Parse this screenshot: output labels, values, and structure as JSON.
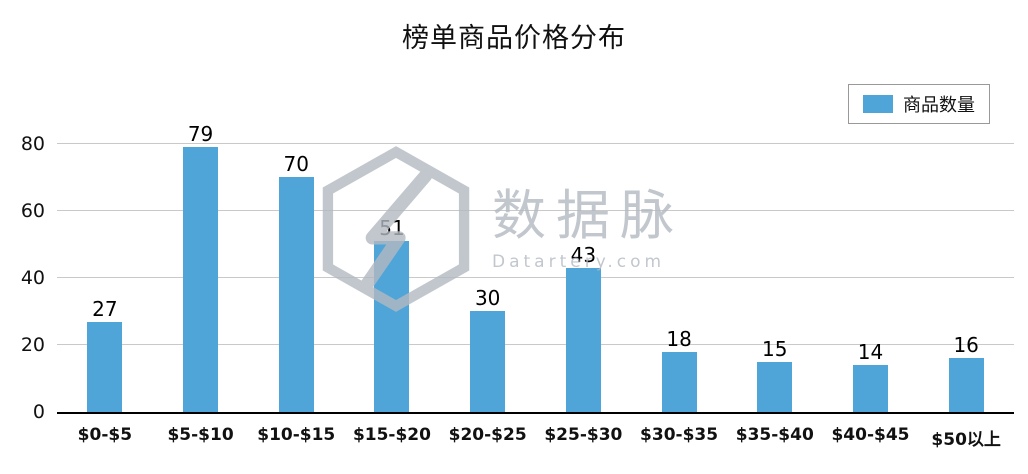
{
  "chart_data": {
    "type": "bar",
    "title": "榜单商品价格分布",
    "categories": [
      "$0-$5",
      "$5-$10",
      "$10-$15",
      "$15-$20",
      "$20-$25",
      "$25-$30",
      "$30-$35",
      "$35-$40",
      "$40-$45",
      "$50以上"
    ],
    "values": [
      27,
      79,
      70,
      51,
      30,
      43,
      18,
      15,
      14,
      16
    ],
    "series_name": "商品数量",
    "xlabel": "",
    "ylabel": "",
    "ylim": [
      0,
      88
    ],
    "yticks": [
      0,
      20,
      40,
      60,
      80
    ],
    "grid": true,
    "legend_position": "top-right",
    "bar_color": "#4FA4D8",
    "gridline_color": "#c9c9c9",
    "axis_color": "#000000"
  },
  "legend": {
    "label": "商品数量"
  },
  "watermark": {
    "name": "数据脉",
    "domain": "Datartery.com"
  }
}
